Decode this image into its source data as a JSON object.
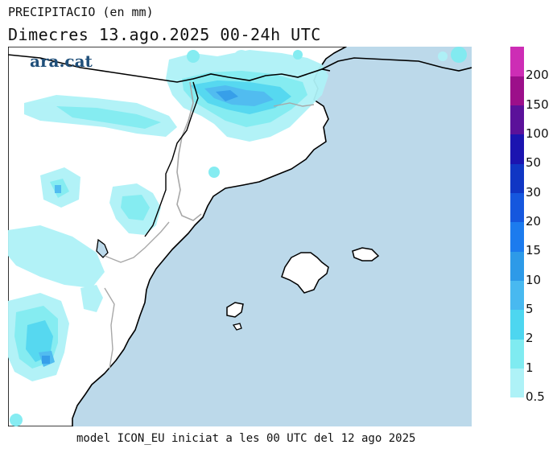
{
  "header": {
    "title": "PRECIPITACIO (en mm)",
    "subtitle": "Dimecres  13.ago.2025 00-24h UTC"
  },
  "brand": "ara.cat",
  "footer": "model ICON_EU iniciat a les 00 UTC del 12 ago 2025",
  "colors": {
    "sea": "#bcd9ea",
    "land": "#ffffff",
    "coast": "#000000",
    "border": "#a8a8a8"
  },
  "legend": {
    "labels": [
      "0.5",
      "1",
      "2",
      "5",
      "10",
      "15",
      "20",
      "30",
      "50",
      "100",
      "150",
      "200"
    ],
    "colors": [
      "#aef2f7",
      "#7febf1",
      "#4dd6f0",
      "#48b9f0",
      "#2d9ae8",
      "#1c7bee",
      "#1557de",
      "#1036c4",
      "#1b14b0",
      "#5b119a",
      "#9c0f8a",
      "#cd2db5"
    ]
  }
}
